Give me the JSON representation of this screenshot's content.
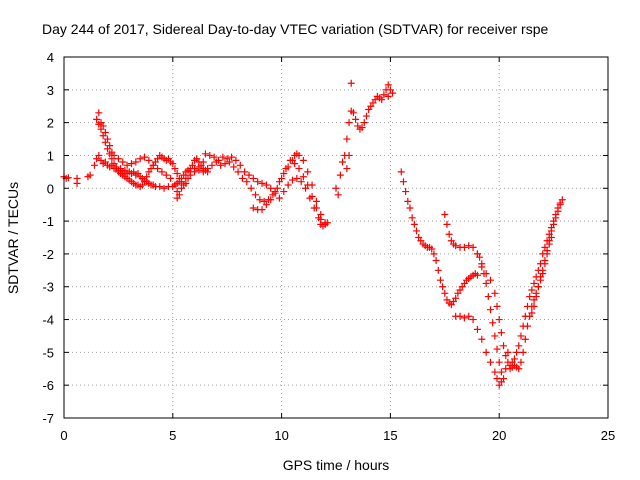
{
  "chart_data": {
    "type": "scatter",
    "title": "Day 244 of 2017, Sidereal Day-to-day VTEC variation (SDTVAR) for receiver rspe",
    "xlabel": "GPS time / hours",
    "ylabel": "SDTVAR / TECUs",
    "xlim": [
      0,
      25
    ],
    "ylim": [
      -7,
      4
    ],
    "xticks": [
      "0",
      "5",
      "10",
      "15",
      "20",
      "25"
    ],
    "yticks": [
      "4",
      "3",
      "2",
      "1",
      "0",
      "-1",
      "-2",
      "-3",
      "-4",
      "-5",
      "-6",
      "-7"
    ],
    "grid": true,
    "marker": "plus",
    "color": "#ff0000",
    "points": [
      [
        0.0,
        0.35
      ],
      [
        0.1,
        0.3
      ],
      [
        0.2,
        0.32
      ],
      [
        0.6,
        0.3
      ],
      [
        0.6,
        0.15
      ],
      [
        1.1,
        0.35
      ],
      [
        1.2,
        0.4
      ],
      [
        1.4,
        0.7
      ],
      [
        1.5,
        0.9
      ],
      [
        1.6,
        1.0
      ],
      [
        1.7,
        0.85
      ],
      [
        1.8,
        0.75
      ],
      [
        1.9,
        0.8
      ],
      [
        2.0,
        0.7
      ],
      [
        2.1,
        0.65
      ],
      [
        2.2,
        0.7
      ],
      [
        2.3,
        0.6
      ],
      [
        2.4,
        0.65
      ],
      [
        2.5,
        0.55
      ],
      [
        2.6,
        0.6
      ],
      [
        2.7,
        0.5
      ],
      [
        2.8,
        0.55
      ],
      [
        2.9,
        0.45
      ],
      [
        3.0,
        0.5
      ],
      [
        3.1,
        0.45
      ],
      [
        3.2,
        0.5
      ],
      [
        3.3,
        0.4
      ],
      [
        3.4,
        0.45
      ],
      [
        3.5,
        0.35
      ],
      [
        3.6,
        0.3
      ],
      [
        3.7,
        0.25
      ],
      [
        3.8,
        0.2
      ],
      [
        3.9,
        0.15
      ],
      [
        4.0,
        0.1
      ],
      [
        4.1,
        0.1
      ],
      [
        4.2,
        0.05
      ],
      [
        4.4,
        0.05
      ],
      [
        4.6,
        0.0
      ],
      [
        4.8,
        0.05
      ],
      [
        5.0,
        0.05
      ],
      [
        5.1,
        0.1
      ],
      [
        5.2,
        0.15
      ],
      [
        5.3,
        0.2
      ],
      [
        5.4,
        0.3
      ],
      [
        5.5,
        0.4
      ],
      [
        5.6,
        0.5
      ],
      [
        5.7,
        0.55
      ],
      [
        5.8,
        0.6
      ],
      [
        6.0,
        0.6
      ],
      [
        6.2,
        0.55
      ],
      [
        6.4,
        0.5
      ],
      [
        6.6,
        0.6
      ],
      [
        6.8,
        0.7
      ],
      [
        1.5,
        2.1
      ],
      [
        1.6,
        1.95
      ],
      [
        1.7,
        1.8
      ],
      [
        1.8,
        1.6
      ],
      [
        1.9,
        1.4
      ],
      [
        2.0,
        1.2
      ],
      [
        2.1,
        1.05
      ],
      [
        2.2,
        0.9
      ],
      [
        2.3,
        0.75
      ],
      [
        2.4,
        0.6
      ],
      [
        2.5,
        0.5
      ],
      [
        2.6,
        0.45
      ],
      [
        2.7,
        0.4
      ],
      [
        2.8,
        0.35
      ],
      [
        2.9,
        0.3
      ],
      [
        3.0,
        0.25
      ],
      [
        3.1,
        0.2
      ],
      [
        3.2,
        0.15
      ],
      [
        3.3,
        0.1
      ],
      [
        3.4,
        0.1
      ],
      [
        3.5,
        0.05
      ],
      [
        3.6,
        0.1
      ],
      [
        3.7,
        0.2
      ],
      [
        3.8,
        0.35
      ],
      [
        3.9,
        0.5
      ],
      [
        4.0,
        0.6
      ],
      [
        4.1,
        0.7
      ],
      [
        4.2,
        0.8
      ],
      [
        4.3,
        0.9
      ],
      [
        4.4,
        1.0
      ],
      [
        4.5,
        0.95
      ],
      [
        4.6,
        0.9
      ],
      [
        4.7,
        0.85
      ],
      [
        4.8,
        0.9
      ],
      [
        4.9,
        0.8
      ],
      [
        5.0,
        0.75
      ],
      [
        5.1,
        0.6
      ],
      [
        5.2,
        0.45
      ],
      [
        5.3,
        0.3
      ],
      [
        5.4,
        0.2
      ],
      [
        5.5,
        0.1
      ],
      [
        5.6,
        0.15
      ],
      [
        5.7,
        0.3
      ],
      [
        5.8,
        0.5
      ],
      [
        5.9,
        0.7
      ],
      [
        6.0,
        0.85
      ],
      [
        6.1,
        0.9
      ],
      [
        6.2,
        0.8
      ],
      [
        6.3,
        0.7
      ],
      [
        6.4,
        0.6
      ],
      [
        6.5,
        0.55
      ],
      [
        6.6,
        0.5
      ],
      [
        1.6,
        2.3
      ],
      [
        1.7,
        2.0
      ],
      [
        1.8,
        1.9
      ],
      [
        1.9,
        1.7
      ],
      [
        2.0,
        1.5
      ],
      [
        2.1,
        1.3
      ],
      [
        2.2,
        1.1
      ],
      [
        2.3,
        1.0
      ],
      [
        2.5,
        0.9
      ],
      [
        2.7,
        0.8
      ],
      [
        2.9,
        0.7
      ],
      [
        3.1,
        0.75
      ],
      [
        3.3,
        0.8
      ],
      [
        3.5,
        0.9
      ],
      [
        3.7,
        0.95
      ],
      [
        3.9,
        0.85
      ],
      [
        4.1,
        0.7
      ],
      [
        4.3,
        0.6
      ],
      [
        4.5,
        0.5
      ],
      [
        4.7,
        0.4
      ],
      [
        4.9,
        0.3
      ],
      [
        5.1,
        0.1
      ],
      [
        5.2,
        -0.1
      ],
      [
        5.2,
        -0.3
      ],
      [
        5.3,
        -0.2
      ],
      [
        5.4,
        0.0
      ],
      [
        5.6,
        0.3
      ],
      [
        5.8,
        0.4
      ],
      [
        6.0,
        0.5
      ],
      [
        6.2,
        0.65
      ],
      [
        6.4,
        0.8
      ],
      [
        6.5,
        1.05
      ],
      [
        6.7,
        1.0
      ],
      [
        6.9,
        0.95
      ],
      [
        7.1,
        0.85
      ],
      [
        7.3,
        0.95
      ],
      [
        7.5,
        0.9
      ],
      [
        7.7,
        0.95
      ],
      [
        7.9,
        0.85
      ],
      [
        8.1,
        0.7
      ],
      [
        8.3,
        0.5
      ],
      [
        8.5,
        0.4
      ],
      [
        8.7,
        0.3
      ],
      [
        8.9,
        0.2
      ],
      [
        9.1,
        0.15
      ],
      [
        9.3,
        0.1
      ],
      [
        9.5,
        0.0
      ],
      [
        9.7,
        -0.15
      ],
      [
        9.9,
        -0.3
      ],
      [
        10.1,
        -0.1
      ],
      [
        10.3,
        0.1
      ],
      [
        10.5,
        0.25
      ],
      [
        10.7,
        0.3
      ],
      [
        10.9,
        0.2
      ],
      [
        11.1,
        0.0
      ],
      [
        11.3,
        -0.3
      ],
      [
        11.5,
        -0.6
      ],
      [
        11.7,
        -0.9
      ],
      [
        11.8,
        -1.1
      ],
      [
        11.9,
        -1.15
      ],
      [
        12.0,
        -1.05
      ],
      [
        7.0,
        0.8
      ],
      [
        7.2,
        0.7
      ],
      [
        7.4,
        0.75
      ],
      [
        7.6,
        0.8
      ],
      [
        7.8,
        0.65
      ],
      [
        8.0,
        0.5
      ],
      [
        8.2,
        0.3
      ],
      [
        8.4,
        0.2
      ],
      [
        8.6,
        0.0
      ],
      [
        8.8,
        -0.2
      ],
      [
        9.0,
        -0.35
      ],
      [
        9.2,
        -0.4
      ],
      [
        9.4,
        -0.35
      ],
      [
        9.6,
        -0.2
      ],
      [
        9.8,
        0.0
      ],
      [
        10.0,
        0.3
      ],
      [
        10.2,
        0.6
      ],
      [
        10.4,
        0.85
      ],
      [
        10.6,
        1.0
      ],
      [
        10.7,
        1.05
      ],
      [
        10.8,
        1.0
      ],
      [
        11.0,
        0.85
      ],
      [
        11.2,
        0.5
      ],
      [
        11.4,
        0.1
      ],
      [
        11.6,
        -0.4
      ],
      [
        11.8,
        -0.8
      ],
      [
        12.0,
        -1.1
      ],
      [
        12.1,
        -1.05
      ],
      [
        8.7,
        -0.6
      ],
      [
        8.9,
        -0.65
      ],
      [
        9.1,
        -0.65
      ],
      [
        9.3,
        -0.5
      ],
      [
        9.5,
        -0.35
      ],
      [
        9.7,
        -0.1
      ],
      [
        9.9,
        0.2
      ],
      [
        10.1,
        0.45
      ],
      [
        10.3,
        0.65
      ],
      [
        10.5,
        0.85
      ],
      [
        10.6,
        0.75
      ],
      [
        10.8,
        0.6
      ],
      [
        11.0,
        0.35
      ],
      [
        11.2,
        0.1
      ],
      [
        11.4,
        -0.25
      ],
      [
        11.6,
        -0.6
      ],
      [
        11.8,
        -0.95
      ],
      [
        12.5,
        0.0
      ],
      [
        12.6,
        -0.2
      ],
      [
        12.7,
        0.4
      ],
      [
        12.8,
        0.8
      ],
      [
        12.9,
        1.0
      ],
      [
        13.0,
        1.5
      ],
      [
        13.0,
        0.6
      ],
      [
        13.1,
        2.0
      ],
      [
        13.1,
        1.0
      ],
      [
        13.2,
        2.35
      ],
      [
        13.3,
        2.3
      ],
      [
        13.4,
        2.1
      ],
      [
        13.5,
        1.9
      ],
      [
        13.6,
        1.8
      ],
      [
        13.7,
        1.85
      ],
      [
        13.8,
        2.0
      ],
      [
        13.9,
        2.2
      ],
      [
        14.0,
        2.4
      ],
      [
        14.1,
        2.5
      ],
      [
        14.2,
        2.6
      ],
      [
        14.3,
        2.7
      ],
      [
        14.4,
        2.8
      ],
      [
        14.5,
        2.75
      ],
      [
        14.6,
        2.7
      ],
      [
        14.7,
        2.85
      ],
      [
        14.8,
        3.0
      ],
      [
        14.9,
        3.15
      ],
      [
        15.0,
        3.0
      ],
      [
        15.1,
        2.9
      ],
      [
        14.9,
        2.8
      ],
      [
        13.2,
        3.2
      ],
      [
        15.5,
        0.5
      ],
      [
        15.6,
        0.2
      ],
      [
        15.7,
        -0.1
      ],
      [
        15.8,
        -0.4
      ],
      [
        15.9,
        -0.6
      ],
      [
        16.0,
        -0.9
      ],
      [
        16.1,
        -1.1
      ],
      [
        16.2,
        -1.3
      ],
      [
        16.3,
        -1.5
      ],
      [
        16.4,
        -1.6
      ],
      [
        16.5,
        -1.7
      ],
      [
        16.6,
        -1.75
      ],
      [
        16.7,
        -1.8
      ],
      [
        16.8,
        -1.8
      ],
      [
        16.9,
        -1.85
      ],
      [
        17.0,
        -2.0
      ],
      [
        17.1,
        -2.2
      ],
      [
        17.2,
        -2.5
      ],
      [
        17.3,
        -2.8
      ],
      [
        17.4,
        -3.0
      ],
      [
        17.5,
        -3.2
      ],
      [
        17.6,
        -3.4
      ],
      [
        17.7,
        -3.5
      ],
      [
        17.8,
        -3.55
      ],
      [
        17.9,
        -3.45
      ],
      [
        18.0,
        -3.35
      ],
      [
        18.1,
        -3.2
      ],
      [
        18.2,
        -3.1
      ],
      [
        18.3,
        -3.0
      ],
      [
        18.4,
        -2.9
      ],
      [
        18.5,
        -2.8
      ],
      [
        18.6,
        -2.75
      ],
      [
        18.7,
        -2.7
      ],
      [
        18.8,
        -2.65
      ],
      [
        18.9,
        -2.6
      ],
      [
        19.0,
        -2.65
      ],
      [
        17.5,
        -0.8
      ],
      [
        17.6,
        -1.1
      ],
      [
        17.7,
        -1.4
      ],
      [
        17.8,
        -1.6
      ],
      [
        17.9,
        -1.7
      ],
      [
        18.0,
        -1.75
      ],
      [
        18.2,
        -1.8
      ],
      [
        18.4,
        -1.8
      ],
      [
        18.6,
        -1.75
      ],
      [
        18.8,
        -1.8
      ],
      [
        19.0,
        -2.0
      ],
      [
        19.1,
        -2.1
      ],
      [
        19.2,
        -2.3
      ],
      [
        19.3,
        -2.6
      ],
      [
        19.4,
        -2.9
      ],
      [
        19.5,
        -3.3
      ],
      [
        19.6,
        -3.7
      ],
      [
        19.7,
        -4.1
      ],
      [
        19.8,
        -4.5
      ],
      [
        19.9,
        -4.9
      ],
      [
        20.0,
        -5.3
      ],
      [
        20.1,
        -5.6
      ],
      [
        20.2,
        -5.8
      ],
      [
        20.3,
        -5.5
      ],
      [
        20.4,
        -5.0
      ],
      [
        18.0,
        -3.9
      ],
      [
        18.2,
        -3.9
      ],
      [
        18.4,
        -3.95
      ],
      [
        18.6,
        -3.9
      ],
      [
        18.8,
        -4.0
      ],
      [
        19.0,
        -4.3
      ],
      [
        19.2,
        -4.6
      ],
      [
        19.4,
        -5.0
      ],
      [
        19.6,
        -5.3
      ],
      [
        19.8,
        -5.6
      ],
      [
        19.9,
        -5.8
      ],
      [
        20.0,
        -6.0
      ],
      [
        20.1,
        -5.9
      ],
      [
        19.0,
        -2.0
      ],
      [
        19.2,
        -2.4
      ],
      [
        19.4,
        -2.6
      ],
      [
        19.6,
        -2.8
      ],
      [
        19.8,
        -3.2
      ],
      [
        19.9,
        -3.6
      ],
      [
        20.0,
        -4.0
      ],
      [
        20.1,
        -4.4
      ],
      [
        20.2,
        -4.8
      ],
      [
        20.3,
        -5.1
      ],
      [
        20.4,
        -5.3
      ],
      [
        20.5,
        -5.4
      ],
      [
        20.6,
        -5.3
      ],
      [
        20.7,
        -5.2
      ],
      [
        20.8,
        -5.0
      ],
      [
        20.9,
        -4.8
      ],
      [
        21.0,
        -4.5
      ],
      [
        21.1,
        -4.2
      ],
      [
        21.2,
        -3.9
      ],
      [
        21.3,
        -3.6
      ],
      [
        21.4,
        -3.3
      ],
      [
        21.5,
        -3.1
      ],
      [
        21.6,
        -2.9
      ],
      [
        21.7,
        -2.7
      ],
      [
        21.8,
        -2.5
      ],
      [
        21.9,
        -2.3
      ],
      [
        22.0,
        -2.0
      ],
      [
        22.1,
        -1.8
      ],
      [
        22.2,
        -1.6
      ],
      [
        22.3,
        -1.4
      ],
      [
        22.4,
        -1.2
      ],
      [
        22.5,
        -1.0
      ],
      [
        22.6,
        -0.8
      ],
      [
        22.7,
        -0.6
      ],
      [
        22.8,
        -0.45
      ],
      [
        22.9,
        -0.35
      ],
      [
        20.5,
        -5.5
      ],
      [
        20.6,
        -5.45
      ],
      [
        20.7,
        -5.4
      ],
      [
        20.8,
        -5.45
      ],
      [
        20.9,
        -5.5
      ],
      [
        21.0,
        -5.3
      ],
      [
        21.1,
        -5.0
      ],
      [
        21.2,
        -4.6
      ],
      [
        21.3,
        -4.2
      ],
      [
        21.4,
        -3.9
      ],
      [
        21.5,
        -3.6
      ],
      [
        21.6,
        -3.4
      ],
      [
        21.7,
        -3.2
      ],
      [
        21.8,
        -3.0
      ],
      [
        21.9,
        -2.7
      ],
      [
        22.0,
        -2.5
      ],
      [
        22.1,
        -2.2
      ],
      [
        22.2,
        -1.9
      ],
      [
        22.3,
        -1.6
      ],
      [
        22.4,
        -1.3
      ],
      [
        22.5,
        -1.1
      ],
      [
        22.6,
        -0.9
      ],
      [
        22.7,
        -0.7
      ],
      [
        22.8,
        -0.5
      ],
      [
        21.5,
        -3.8
      ],
      [
        21.6,
        -3.6
      ],
      [
        21.7,
        -3.3
      ],
      [
        21.8,
        -3.0
      ],
      [
        21.9,
        -2.8
      ],
      [
        22.0,
        -2.6
      ],
      [
        22.1,
        -2.3
      ],
      [
        22.2,
        -2.0
      ],
      [
        22.3,
        -1.7
      ],
      [
        22.4,
        -1.5
      ]
    ]
  }
}
